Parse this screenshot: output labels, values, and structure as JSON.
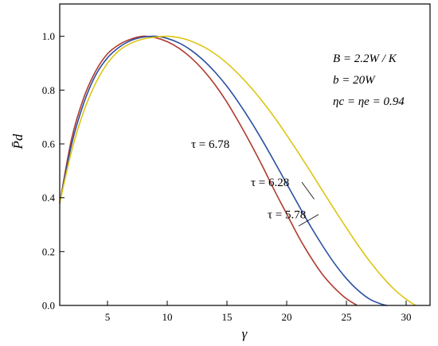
{
  "chart_data": {
    "type": "line",
    "xlabel": "γ",
    "ylabel": "P̄d",
    "xlim": [
      1,
      32
    ],
    "ylim": [
      0,
      1.12
    ],
    "x_ticks": [
      5,
      10,
      15,
      20,
      25,
      30
    ],
    "y_ticks": [
      0.0,
      0.2,
      0.4,
      0.6,
      0.8,
      1.0
    ],
    "y_tick_labels": [
      "0.0",
      "0.2",
      "0.4",
      "0.6",
      "0.8",
      "1.0"
    ],
    "grid": false,
    "series": [
      {
        "name": "τ = 5.78",
        "color": "#b03a2e",
        "x": [
          1,
          2,
          3,
          4,
          5,
          6,
          7,
          8,
          9,
          10,
          11,
          12,
          13,
          14,
          15,
          16,
          17,
          18,
          19,
          20,
          21,
          22,
          23,
          24,
          25,
          25.9
        ],
        "y": [
          0.38,
          0.62,
          0.77,
          0.87,
          0.935,
          0.97,
          0.99,
          1.0,
          0.995,
          0.98,
          0.955,
          0.92,
          0.875,
          0.82,
          0.755,
          0.68,
          0.6,
          0.515,
          0.425,
          0.34,
          0.255,
          0.18,
          0.115,
          0.065,
          0.025,
          0.0
        ]
      },
      {
        "name": "τ = 6.28",
        "color": "#2b4fa2",
        "x": [
          1,
          2,
          3,
          4,
          5,
          6,
          7,
          8,
          9,
          10,
          11,
          12,
          13,
          14,
          15,
          16,
          17,
          18,
          19,
          20,
          21,
          22,
          23,
          24,
          25,
          26,
          27,
          28,
          28.4
        ],
        "y": [
          0.38,
          0.6,
          0.75,
          0.855,
          0.92,
          0.96,
          0.985,
          0.997,
          1.0,
          0.992,
          0.975,
          0.948,
          0.912,
          0.867,
          0.814,
          0.752,
          0.684,
          0.61,
          0.532,
          0.452,
          0.372,
          0.294,
          0.222,
          0.156,
          0.1,
          0.055,
          0.022,
          0.004,
          0.0
        ]
      },
      {
        "name": "τ = 6.78",
        "color": "#ddc514",
        "x": [
          1,
          2,
          3,
          4,
          5,
          6,
          7,
          8,
          9,
          10,
          11,
          12,
          13,
          14,
          15,
          16,
          17,
          18,
          19,
          20,
          21,
          22,
          23,
          24,
          25,
          26,
          27,
          28,
          29,
          30,
          30.8
        ],
        "y": [
          0.38,
          0.575,
          0.72,
          0.825,
          0.9,
          0.948,
          0.975,
          0.99,
          0.997,
          1.0,
          0.995,
          0.982,
          0.962,
          0.935,
          0.9,
          0.858,
          0.81,
          0.756,
          0.697,
          0.633,
          0.566,
          0.497,
          0.426,
          0.356,
          0.288,
          0.222,
          0.161,
          0.107,
          0.06,
          0.023,
          0.0
        ]
      }
    ],
    "annotations": [
      {
        "text": "τ = 6.78",
        "x": 12.0,
        "y": 0.6
      },
      {
        "text": "τ = 6.28",
        "x": 17.0,
        "y": 0.458
      },
      {
        "text": "τ = 5.78",
        "x": 18.4,
        "y": 0.338
      }
    ],
    "parameters": [
      "B = 2.2W / K",
      "b = 20W",
      "ηc = ηe = 0.94"
    ]
  }
}
